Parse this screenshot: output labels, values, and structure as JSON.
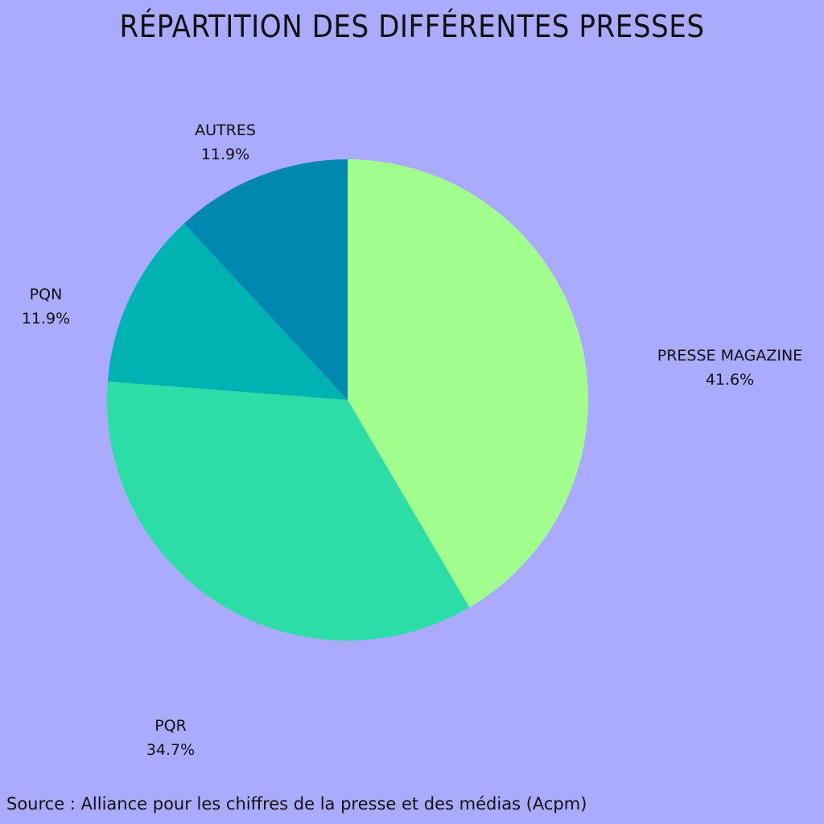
{
  "chart_data": {
    "type": "pie",
    "title": "RÉPARTITION DES DIFFÉRENTES PRESSES",
    "categories": [
      "PRESSE MAGAZINE",
      "PQR",
      "PQN",
      "AUTRES"
    ],
    "values": [
      41.6,
      34.7,
      11.9,
      11.9
    ],
    "value_labels": [
      "41.6%",
      "34.7%",
      "11.9%",
      "11.9%"
    ],
    "colors": [
      "#a0ff8c",
      "#2cdea6",
      "#00b3b3",
      "#0088b0"
    ],
    "source": "Source : Alliance pour les chiffres de la presse et des médias (Acpm)"
  }
}
